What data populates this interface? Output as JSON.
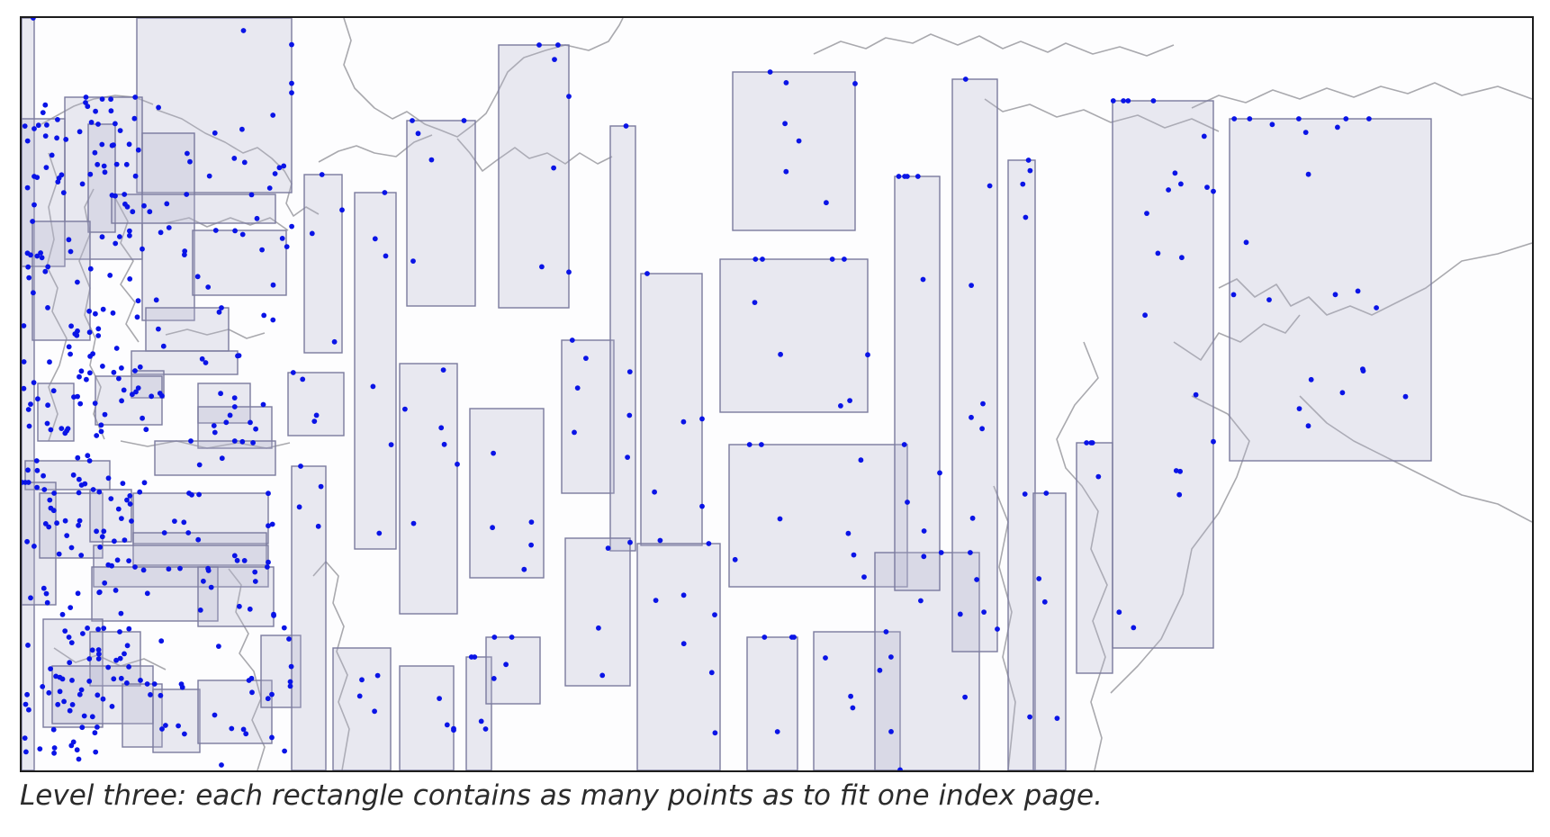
{
  "figure": {
    "caption": "Level three: each rectangle contains as many points as to fit one index page.",
    "colors": {
      "background": "#fdfdfe",
      "coastline": "#a9a9ae",
      "rectangle_fill": "#b4b4cc",
      "rectangle_stroke": "#7a7a9e",
      "point": "#0a14e6",
      "frame": "#1c1c1c"
    },
    "legend": "none",
    "content": [
      "coastline outline",
      "index page rectangles",
      "indexed points"
    ]
  }
}
